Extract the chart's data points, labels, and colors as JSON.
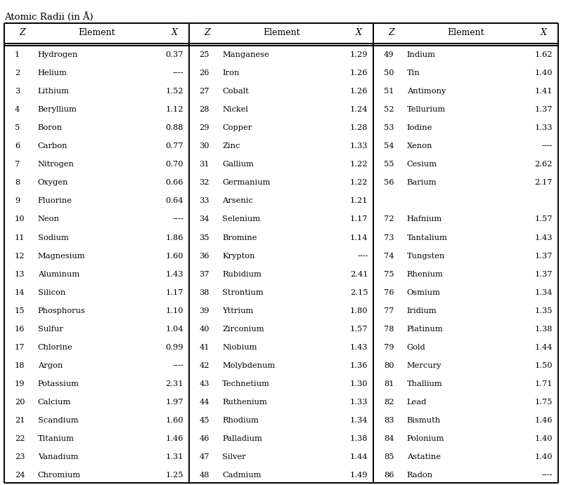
{
  "title": "Atomic Radii (in Å)",
  "background_color": "#ffffff",
  "col1": [
    [
      1,
      "Hydrogen",
      "0.37"
    ],
    [
      2,
      "Helium",
      "----"
    ],
    [
      3,
      "Lithium",
      "1.52"
    ],
    [
      4,
      "Beryllium",
      "1.12"
    ],
    [
      5,
      "Boron",
      "0.88"
    ],
    [
      6,
      "Carbon",
      "0.77"
    ],
    [
      7,
      "Nitrogen",
      "0.70"
    ],
    [
      8,
      "Oxygen",
      "0.66"
    ],
    [
      9,
      "Fluorine",
      "0.64"
    ],
    [
      10,
      "Neon",
      "----"
    ],
    [
      11,
      "Sodium",
      "1.86"
    ],
    [
      12,
      "Magnesium",
      "1.60"
    ],
    [
      13,
      "Aluminum",
      "1.43"
    ],
    [
      14,
      "Silicon",
      "1.17"
    ],
    [
      15,
      "Phosphorus",
      "1.10"
    ],
    [
      16,
      "Sulfur",
      "1.04"
    ],
    [
      17,
      "Chlorine",
      "0.99"
    ],
    [
      18,
      "Argon",
      "----"
    ],
    [
      19,
      "Potassium",
      "2.31"
    ],
    [
      20,
      "Calcium",
      "1.97"
    ],
    [
      21,
      "Scandium",
      "1.60"
    ],
    [
      22,
      "Titanium",
      "1.46"
    ],
    [
      23,
      "Vanadium",
      "1.31"
    ],
    [
      24,
      "Chromium",
      "1.25"
    ]
  ],
  "col2": [
    [
      25,
      "Manganese",
      "1.29"
    ],
    [
      26,
      "Iron",
      "1.26"
    ],
    [
      27,
      "Cobalt",
      "1.26"
    ],
    [
      28,
      "Nickel",
      "1.24"
    ],
    [
      29,
      "Copper",
      "1.28"
    ],
    [
      30,
      "Zinc",
      "1.33"
    ],
    [
      31,
      "Gallium",
      "1.22"
    ],
    [
      32,
      "Germanium",
      "1.22"
    ],
    [
      33,
      "Arsenic",
      "1.21"
    ],
    [
      34,
      "Selenium",
      "1.17"
    ],
    [
      35,
      "Bromine",
      "1.14"
    ],
    [
      36,
      "Krypton",
      "----"
    ],
    [
      37,
      "Rubidium",
      "2.41"
    ],
    [
      38,
      "Strontium",
      "2.15"
    ],
    [
      39,
      "Yttrium",
      "1.80"
    ],
    [
      40,
      "Zirconium",
      "1.57"
    ],
    [
      41,
      "Niobium",
      "1.43"
    ],
    [
      42,
      "Molybdenum",
      "1.36"
    ],
    [
      43,
      "Technetium",
      "1.30"
    ],
    [
      44,
      "Ruthenium",
      "1.33"
    ],
    [
      45,
      "Rhodium",
      "1.34"
    ],
    [
      46,
      "Palladium",
      "1.38"
    ],
    [
      47,
      "Silver",
      "1.44"
    ],
    [
      48,
      "Cadmium",
      "1.49"
    ]
  ],
  "col3": [
    [
      49,
      "Indium",
      "1.62"
    ],
    [
      50,
      "Tin",
      "1.40"
    ],
    [
      51,
      "Antimony",
      "1.41"
    ],
    [
      52,
      "Tellurium",
      "1.37"
    ],
    [
      53,
      "Iodine",
      "1.33"
    ],
    [
      54,
      "Xenon",
      "----"
    ],
    [
      55,
      "Cesium",
      "2.62"
    ],
    [
      56,
      "Barium",
      "2.17"
    ],
    [
      null,
      "",
      ""
    ],
    [
      72,
      "Hafnium",
      "1.57"
    ],
    [
      73,
      "Tantalium",
      "1.43"
    ],
    [
      74,
      "Tungsten",
      "1.37"
    ],
    [
      75,
      "Rhenium",
      "1.37"
    ],
    [
      76,
      "Osmium",
      "1.34"
    ],
    [
      77,
      "Iridium",
      "1.35"
    ],
    [
      78,
      "Platinum",
      "1.38"
    ],
    [
      79,
      "Gold",
      "1.44"
    ],
    [
      80,
      "Mercury",
      "1.50"
    ],
    [
      81,
      "Thallium",
      "1.71"
    ],
    [
      82,
      "Lead",
      "1.75"
    ],
    [
      83,
      "Bismuth",
      "1.46"
    ],
    [
      84,
      "Polonium",
      "1.40"
    ],
    [
      85,
      "Astatine",
      "1.40"
    ],
    [
      86,
      "Radon",
      "----"
    ]
  ]
}
